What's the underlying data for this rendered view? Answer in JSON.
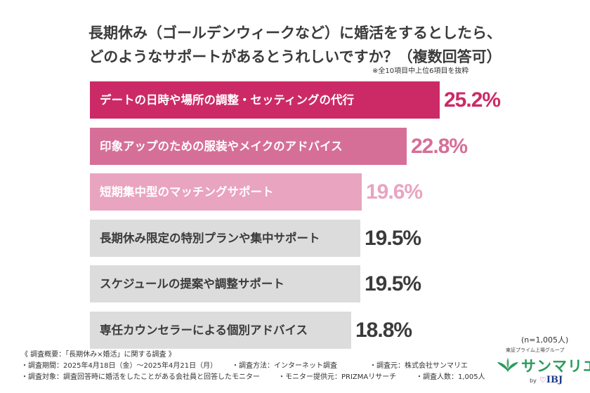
{
  "title": {
    "line1": "長期休み（ゴールデンウィークなど）に婚活をするとしたら、",
    "line2": "どのようなサポートがあるとうれしいですか？（複数回答可）"
  },
  "note": "※全10項目中上位6項目を抜粋",
  "chart_data": {
    "type": "bar",
    "orientation": "horizontal",
    "categories": [
      "デートの日時や場所の調整・セッティングの代行",
      "印象アップのための服装やメイクのアドバイス",
      "短期集中型のマッチングサポート",
      "長期休み限定の特別プランや集中サポート",
      "スケジュールの提案や調整サポート",
      "専任カウンセラーによる個別アドバイス"
    ],
    "values": [
      25.2,
      22.8,
      19.6,
      19.5,
      19.5,
      18.8
    ],
    "value_labels": [
      "25.2%",
      "22.8%",
      "19.6%",
      "19.5%",
      "19.5%",
      "18.8%"
    ],
    "unit": "%",
    "colors": [
      "#cc2a66",
      "#d66f98",
      "#e9a4bf",
      "#dcdcdc",
      "#dcdcdc",
      "#dcdcdc"
    ],
    "label_colors": [
      "#ffffff",
      "#ffffff",
      "#ffffff",
      "#3b3b3b",
      "#3b3b3b",
      "#3b3b3b"
    ],
    "value_colors": [
      "#cc2a66",
      "#d66f98",
      "#e9a4bf",
      "#3b3b3b",
      "#3b3b3b",
      "#3b3b3b"
    ],
    "xlim": [
      0,
      32
    ]
  },
  "n_count": "(n=1,005人)",
  "footer": {
    "heading": "《 調査概要：「長期休み×婚活」に関する調査 》",
    "period": "・調査期間：2025年4月18日（金）〜2025年4月21日（月）",
    "method": "・調査方法：インターネット調査",
    "source": "・調査元：株式会社サンマリエ",
    "target": "・調査対象：調査回答時に婚活をしたことがある会社員と回答したモニター",
    "provider": "・モニター提供元：PRIZMAリサーチ",
    "count": "・調査人数：1,005人"
  },
  "logo": {
    "subtitle": "東証プライム上場グループ",
    "name": "サンマリエ",
    "by": "by",
    "group": "IBJ",
    "brand_color": "#2e9a5e",
    "group_color": "#1f3c88"
  }
}
